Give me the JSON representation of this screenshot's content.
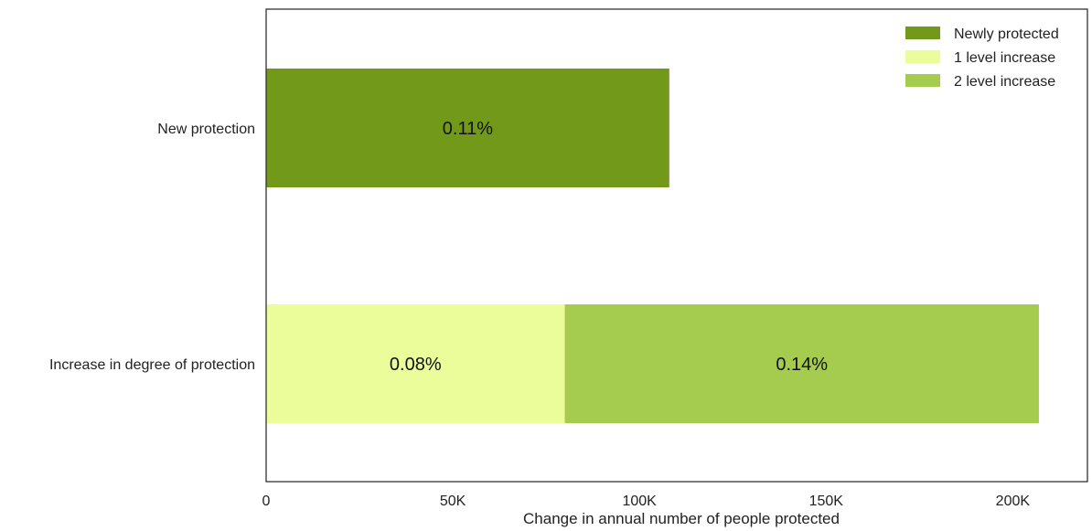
{
  "chart_data": {
    "type": "bar",
    "orientation": "horizontal",
    "stacked": true,
    "title": "",
    "xlabel": "Change in annual number of people protected",
    "ylabel": "",
    "xlim": [
      0,
      220000
    ],
    "x_ticks": [
      0,
      50000,
      100000,
      150000,
      200000
    ],
    "x_tick_labels": [
      "0",
      "50K",
      "100K",
      "150K",
      "200K"
    ],
    "categories": [
      "New protection",
      "Increase in degree of protection"
    ],
    "grid": false,
    "legend_position": "top-right",
    "series": [
      {
        "name": "Newly protected",
        "color": "#72991a",
        "values": [
          108000,
          0
        ],
        "labels": [
          "0.11%",
          ""
        ]
      },
      {
        "name": "1 level increase",
        "color": "#ebfd9a",
        "values": [
          0,
          80000
        ],
        "labels": [
          "",
          "0.08%"
        ]
      },
      {
        "name": "2 level increase",
        "color": "#a6cc4f",
        "values": [
          0,
          127000
        ],
        "labels": [
          "",
          "0.14%"
        ]
      }
    ]
  }
}
